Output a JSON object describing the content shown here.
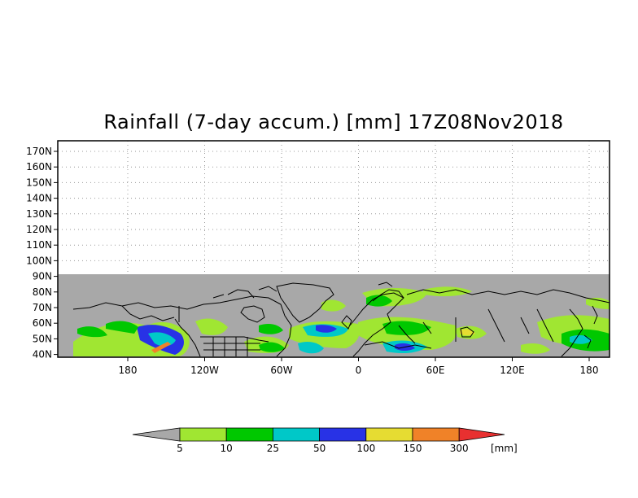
{
  "title": "Rainfall (7-day accum.) [mm] 17Z08Nov2018",
  "lat_labels": [
    "170N",
    "160N",
    "150N",
    "140N",
    "130N",
    "120N",
    "110N",
    "100N",
    "90N",
    "80N",
    "70N",
    "60N",
    "50N",
    "40N"
  ],
  "lon_labels": [
    "180",
    "120W",
    "60W",
    "0",
    "60E",
    "120E",
    "180"
  ],
  "colorbar": {
    "unit": "[mm]",
    "below_color": "#a8a8a8",
    "above_color": "#e83030",
    "bins": [
      {
        "color": "#a0e632"
      },
      {
        "color": "#00c800"
      },
      {
        "color": "#00c8c8"
      },
      {
        "color": "#2832e6"
      },
      {
        "color": "#e6dc32"
      },
      {
        "color": "#f08228"
      }
    ],
    "tick_labels": [
      "5",
      "10",
      "25",
      "50",
      "100",
      "150",
      "300"
    ]
  },
  "colors": {
    "no_data": "#a8a8a8",
    "coastline": "#000000"
  }
}
